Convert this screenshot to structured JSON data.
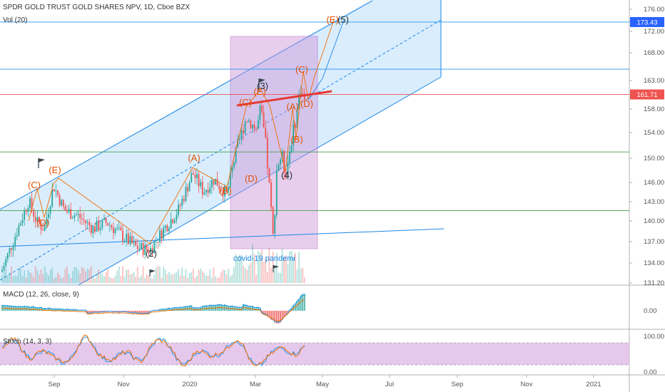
{
  "header": {
    "title": "SPDR GOLD TRUST GOLD SHARES NPV, 1D, Cboe BZX",
    "volume_label": "Vol (20)",
    "macd_label": "MACD (12, 26, close, 9)",
    "stoch_label": "Stoch (14, 3, 3)"
  },
  "colors": {
    "up": "#26a69a",
    "down": "#ef5350",
    "channel_line": "#1e88e5",
    "channel_fill": "#bbdefb",
    "box_fill": "#ce93d8",
    "wave_orange": "#e65100",
    "wave_dark": "#263238",
    "resistance_red": "#e53935",
    "horizontal_blue": "#2196f3",
    "horizontal_green": "#43a047",
    "stoch_band": "#e1bee7",
    "price_tag_blue": "#2962ff",
    "price_tag_red": "#ef5350"
  },
  "annotations": {
    "covid_label": "covid-19 pandemi"
  },
  "chart_data": [
    {
      "type": "candlestick",
      "title": "SPDR GOLD TRUST GOLD SHARES NPV, 1D, Cboe BZX",
      "y_ticks": [
        "176.00",
        "172.00",
        "168.00",
        "163.00",
        "158.00",
        "154.00",
        "150.00",
        "146.00",
        "143.00",
        "140.00",
        "137.00",
        "134.00",
        "131.20"
      ],
      "x_ticks": [
        "Sep",
        "Nov",
        "2020",
        "Mar",
        "May",
        "Jul",
        "Sep",
        "Nov",
        "2021"
      ],
      "price_labels": [
        {
          "value": "173.43",
          "color": "#2962ff"
        },
        {
          "value": "161.71",
          "color": "#ef5350"
        }
      ],
      "horizontal_levels": [
        {
          "price": 173.43,
          "color": "#2196f3"
        },
        {
          "price": 165.8,
          "color": "#2196f3"
        },
        {
          "price": 161.71,
          "color": "#ef5350"
        },
        {
          "price": 152.4,
          "color": "#43a047"
        },
        {
          "price": 142.9,
          "color": "#43a047"
        }
      ],
      "wave_labels": [
        {
          "text": "(C)",
          "color": "orange"
        },
        {
          "text": "(E)",
          "color": "orange"
        },
        {
          "text": "(D)",
          "color": "orange"
        },
        {
          "text": "(2)",
          "color": "dark"
        },
        {
          "text": "(A)",
          "color": "orange"
        },
        {
          "text": "(B)",
          "color": "orange"
        },
        {
          "text": "(C)",
          "color": "orange"
        },
        {
          "text": "(E)",
          "color": "orange"
        },
        {
          "text": "(3)",
          "color": "dark"
        },
        {
          "text": "(D)",
          "color": "orange"
        },
        {
          "text": "(4)",
          "color": "dark"
        },
        {
          "text": "(A)",
          "color": "orange"
        },
        {
          "text": "(B)",
          "color": "orange"
        },
        {
          "text": "(C)",
          "color": "orange"
        },
        {
          "text": "(D)",
          "color": "orange"
        },
        {
          "text": "(E)",
          "color": "orange"
        },
        {
          "text": "(5)",
          "color": "dark"
        }
      ],
      "key_points": [
        {
          "label": "(C)",
          "price": 144.5
        },
        {
          "label": "(E)",
          "price": 147.0
        },
        {
          "label": "(2)",
          "price": 136.5
        },
        {
          "label": "(A)",
          "price": 149.0
        },
        {
          "label": "(B)",
          "price": 145.5
        },
        {
          "label": "(3)",
          "price": 159.5
        },
        {
          "label": "(4)",
          "price": 148.5
        },
        {
          "label": "(C)",
          "price": 163.0
        },
        {
          "label": "(5)",
          "price": 176.0
        }
      ]
    },
    {
      "type": "bar",
      "title": "Vol (20)"
    },
    {
      "type": "histogram",
      "title": "MACD (12, 26, close, 9)",
      "y_ticks": [
        "0.00"
      ]
    },
    {
      "type": "line",
      "title": "Stoch (14, 3, 3)",
      "y_ticks": [
        "100.00",
        "0.00"
      ],
      "bands": [
        80,
        20
      ]
    }
  ]
}
